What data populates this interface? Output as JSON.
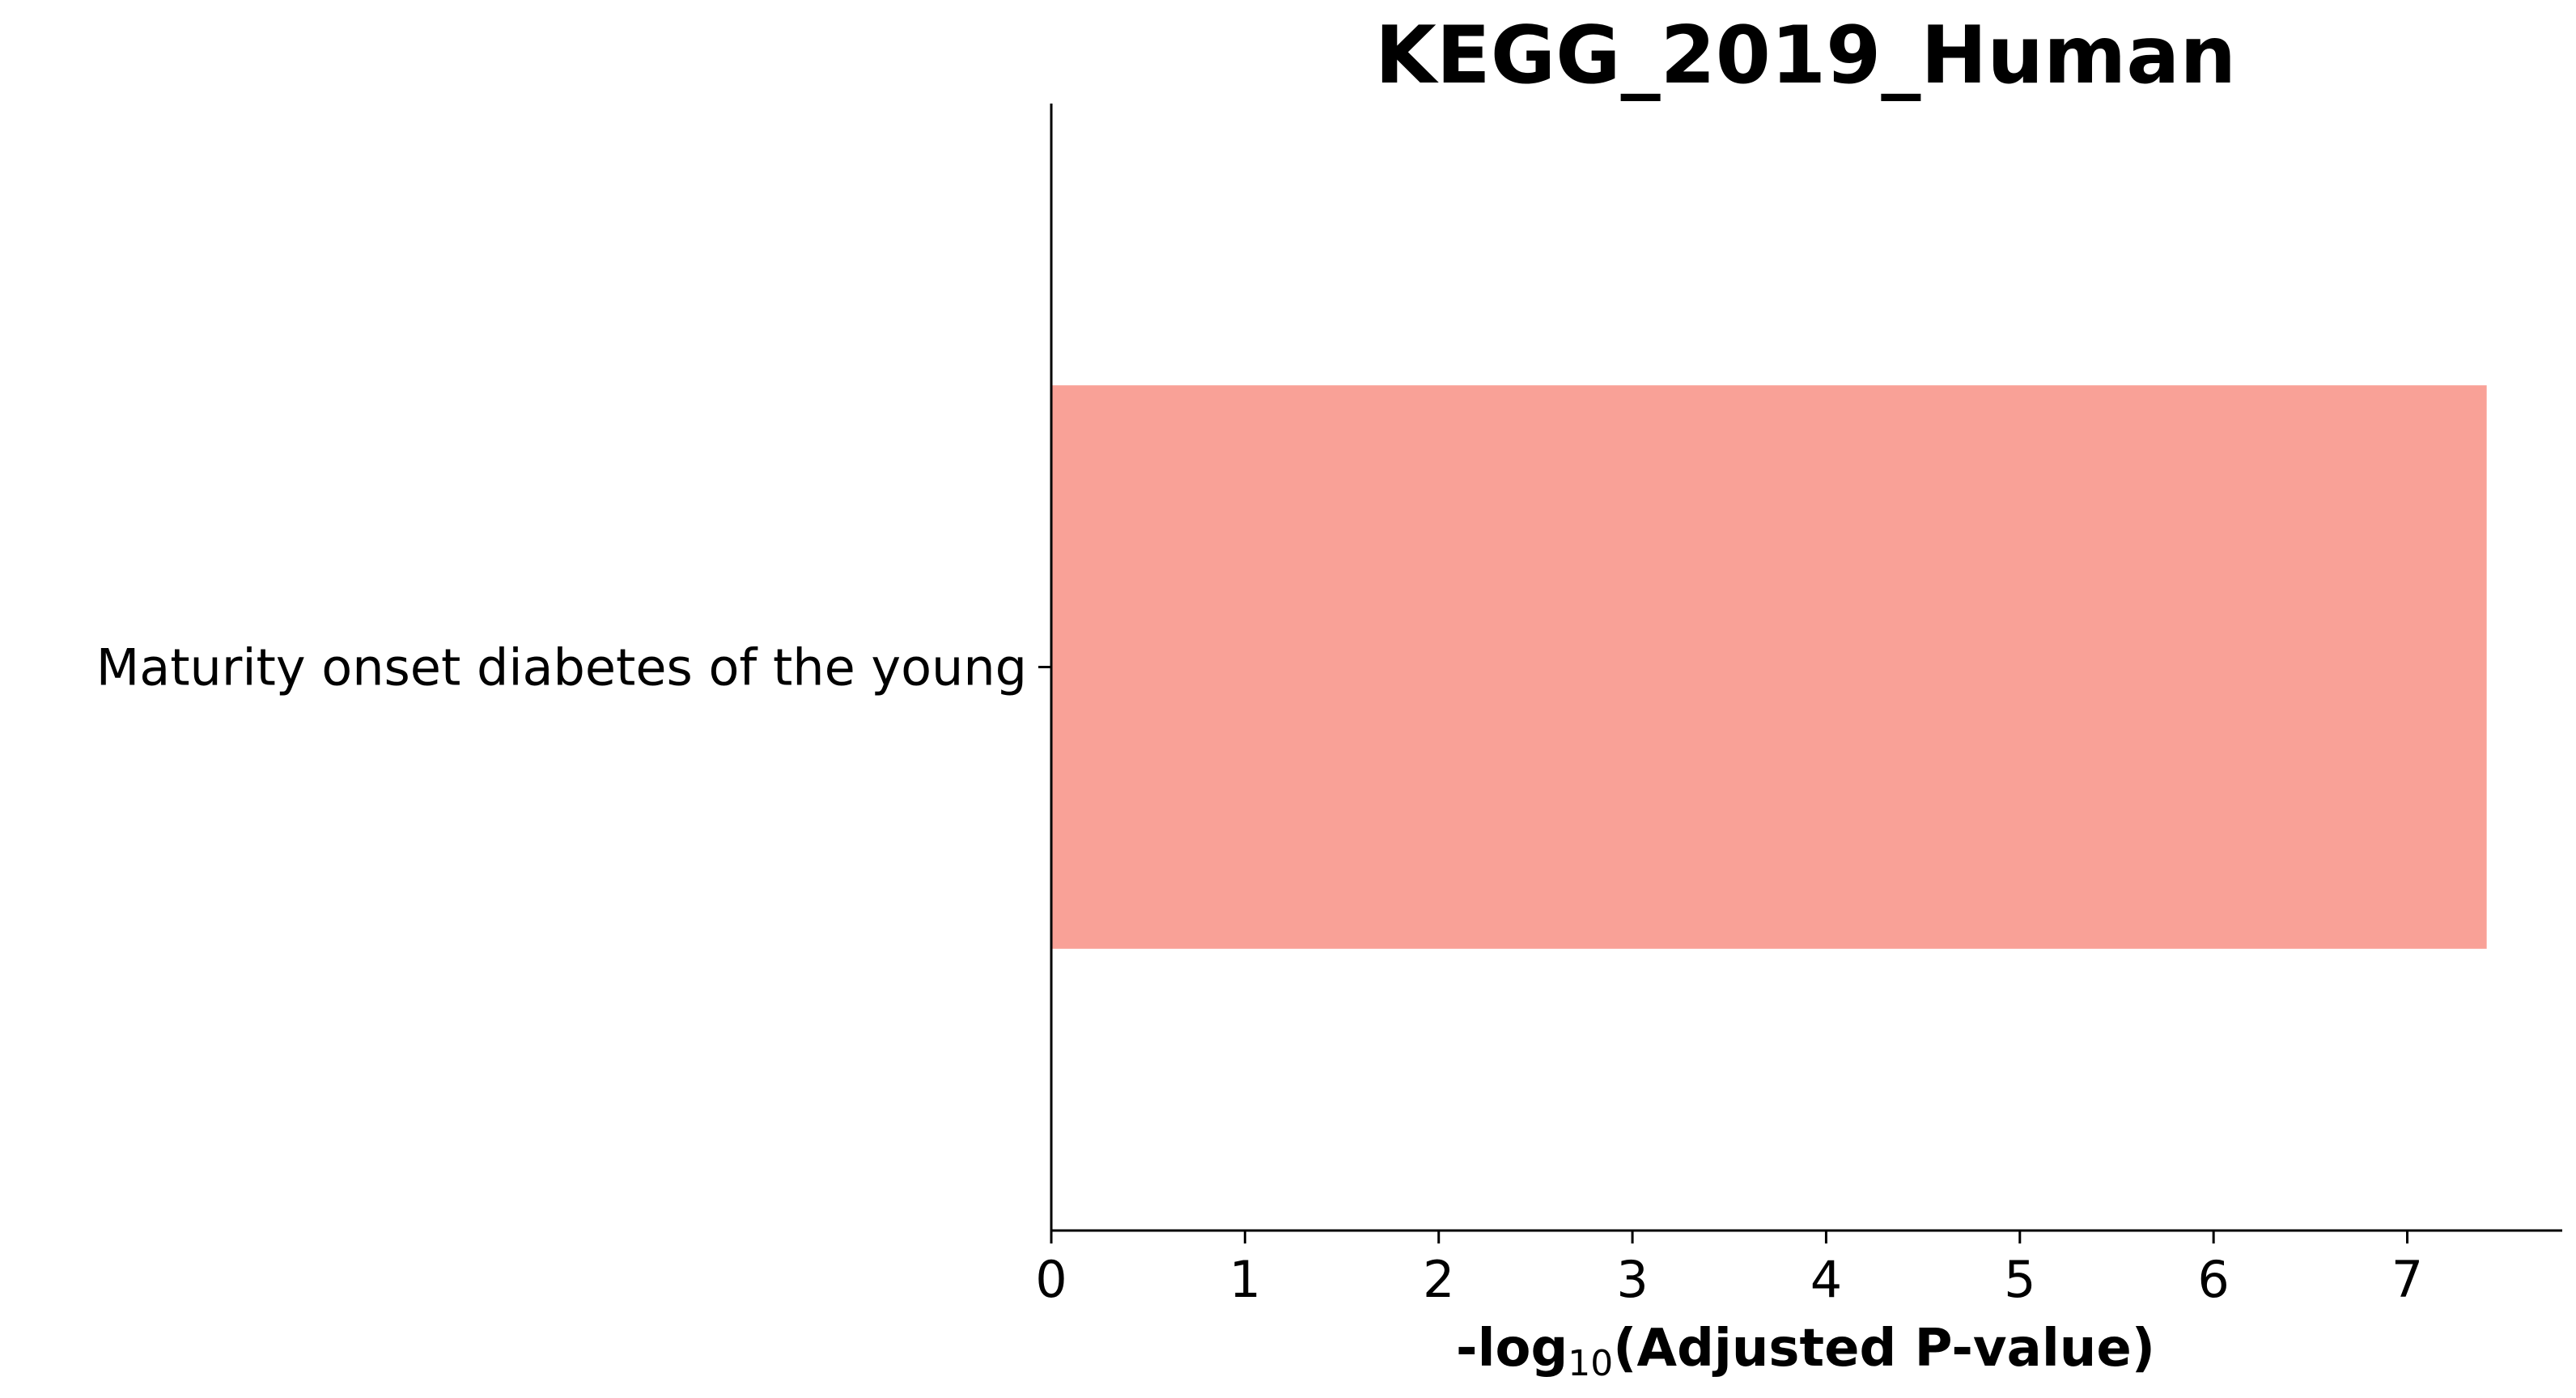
{
  "chart_data": {
    "type": "bar",
    "orientation": "horizontal",
    "title": "KEGG_2019_Human",
    "xlabel": {
      "prefix": "-log",
      "subscript": "10",
      "suffix": "(Adjusted P-value)"
    },
    "ylabel": "",
    "categories": [
      "Maturity onset diabetes of the young"
    ],
    "values": [
      7.41
    ],
    "xlim": [
      0,
      7.8
    ],
    "xticks": [
      0,
      1,
      2,
      3,
      4,
      5,
      6,
      7
    ],
    "bar_color": "#f9a197",
    "grid": false
  }
}
